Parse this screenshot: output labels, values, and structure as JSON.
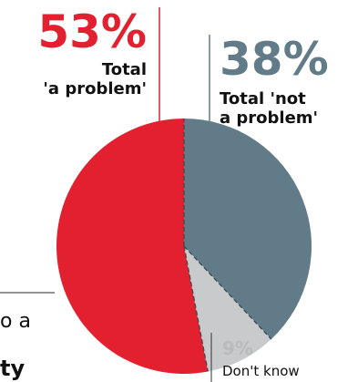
{
  "chart_data": {
    "type": "pie",
    "slices": [
      {
        "label": "Total 'a problem'",
        "value": 53,
        "color": "#e3202f"
      },
      {
        "label": "Total 'not a problem'",
        "value": 38,
        "color": "#617c88"
      },
      {
        "label": "Don't know",
        "value": 9,
        "color": "#c8cacc"
      }
    ],
    "labels": {
      "problem_pct": "53%",
      "problem_line1": "Total",
      "problem_line2": "'a problem'",
      "not_problem_pct": "38%",
      "not_problem_line1": "Total 'not",
      "not_problem_line2": "a problem'",
      "dont_know_pct": "9%",
      "dont_know_label": "Don't know"
    },
    "cropped_text": {
      "line1": "o a",
      "line2": "ty"
    }
  }
}
